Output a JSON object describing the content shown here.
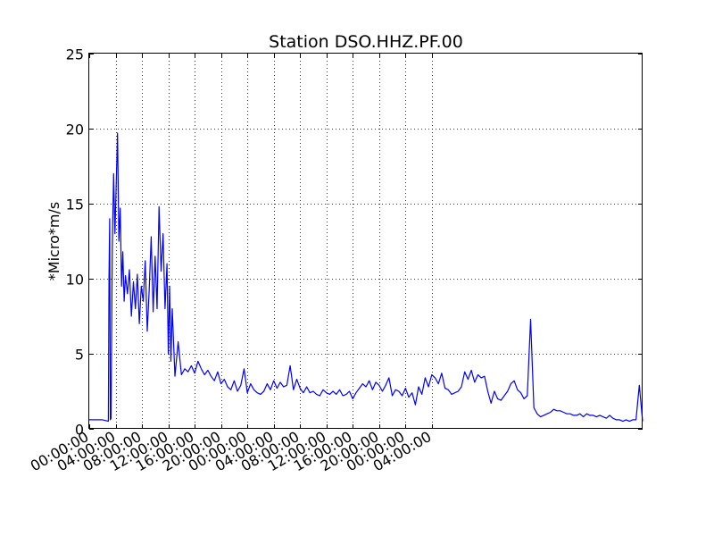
{
  "chart_data": {
    "type": "line",
    "title": "Station DSO.HHZ.PF.00",
    "xlabel": "",
    "ylabel": "*Micro*m/s",
    "ylim": [
      0,
      25
    ],
    "xlim_hours": [
      0,
      84
    ],
    "yticks": [
      "0",
      "5",
      "10",
      "15",
      "20",
      "25"
    ],
    "xticks": [
      "00:00:00",
      "04:00:00",
      "08:00:00",
      "12:00:00",
      "16:00:00",
      "20:00:00",
      "00:00:00",
      "04:00:00",
      "08:00:00",
      "12:00:00",
      "16:00:00",
      "20:00:00",
      "00:00:00",
      "04:00:00"
    ],
    "grid": true,
    "line_color": "#0000ff",
    "series": [
      {
        "x": [
          0,
          1,
          2,
          2.9,
          3.0,
          3.1,
          3.2,
          3.3,
          3.5,
          3.7,
          3.9,
          4.1,
          4.3,
          4.5,
          4.7,
          4.9,
          5.1,
          5.3,
          5.5,
          5.8,
          6.1,
          6.4,
          6.7,
          7.0,
          7.3,
          7.6,
          7.9,
          8.2,
          8.5,
          8.8,
          9.1,
          9.4,
          9.7,
          10.0,
          10.3,
          10.6,
          10.9,
          11.2,
          11.5,
          11.8,
          12.0,
          12.2,
          12.4,
          12.6,
          13,
          13.5,
          14,
          14.5,
          15,
          15.5,
          16,
          16.5,
          17,
          17.5,
          18,
          18.5,
          19,
          19.5,
          20,
          20.5,
          21,
          21.5,
          22,
          22.5,
          23,
          23.5,
          24,
          24.5,
          25,
          25.5,
          26,
          26.5,
          27,
          27.5,
          28,
          28.5,
          29,
          29.5,
          30,
          30.5,
          31,
          31.5,
          32,
          32.5,
          33,
          33.5,
          34,
          34.5,
          35,
          35.5,
          36,
          36.5,
          37,
          37.5,
          38,
          38.5,
          39,
          39.5,
          40,
          40.5,
          41,
          41.5,
          42,
          42.5,
          43,
          43.5,
          44,
          44.5,
          45,
          45.5,
          46,
          46.5,
          47,
          47.5,
          48,
          48.5,
          49,
          49.5,
          50,
          50.5,
          51,
          51.5,
          52,
          52.5,
          53,
          53.5,
          54,
          54.5,
          55,
          55.5,
          56,
          56.5,
          57,
          57.5,
          58,
          58.5,
          59,
          59.5,
          60,
          60.5,
          61,
          61.5,
          62,
          62.5,
          63,
          63.5,
          64,
          64.5,
          65,
          65.5,
          66,
          66.5,
          67,
          67.5,
          68,
          68.5,
          69,
          69.5,
          70,
          70.5,
          71,
          71.5,
          72,
          72.5,
          73,
          73.5,
          74,
          74.5,
          75,
          75.5,
          76,
          76.5,
          77,
          77.5,
          78,
          78.5,
          79,
          79.5,
          80,
          80.5,
          81,
          81.5,
          82,
          82.5,
          83,
          83.5,
          84
        ],
        "values": [
          0.6,
          0.6,
          0.6,
          0.5,
          10.0,
          14.0,
          0.6,
          0.7,
          12.0,
          17.0,
          13.0,
          16.5,
          19.7,
          12.5,
          14.7,
          9.5,
          11.8,
          8.5,
          10.2,
          9.0,
          10.6,
          7.5,
          9.8,
          8.0,
          10.3,
          7.0,
          9.5,
          8.5,
          11.2,
          6.5,
          9.3,
          12.8,
          7.8,
          11.5,
          8.0,
          14.8,
          10.5,
          13.0,
          8.0,
          11.0,
          5.0,
          9.5,
          4.5,
          8.0,
          3.5,
          5.8,
          3.6,
          4.0,
          3.8,
          4.2,
          3.7,
          4.5,
          4.0,
          3.6,
          3.9,
          3.5,
          3.2,
          3.8,
          3.0,
          3.3,
          2.8,
          2.6,
          3.2,
          2.5,
          2.9,
          4.0,
          2.4,
          3.0,
          2.6,
          2.4,
          2.3,
          2.5,
          3.0,
          2.6,
          3.2,
          2.7,
          3.1,
          2.8,
          2.9,
          4.2,
          2.6,
          3.3,
          2.7,
          2.4,
          2.8,
          2.4,
          2.5,
          2.3,
          2.2,
          2.6,
          2.4,
          2.3,
          2.5,
          2.3,
          2.6,
          2.2,
          2.3,
          2.5,
          2.0,
          2.4,
          2.7,
          3.0,
          2.8,
          3.2,
          2.6,
          3.1,
          2.9,
          2.5,
          2.9,
          3.4,
          2.2,
          2.6,
          2.5,
          2.2,
          2.7,
          2.1,
          2.4,
          1.6,
          2.8,
          2.3,
          3.4,
          2.8,
          3.6,
          3.4,
          3.0,
          3.7,
          2.7,
          2.6,
          2.3,
          2.4,
          2.5,
          2.8,
          3.8,
          3.3,
          3.9,
          3.1,
          3.6,
          3.4,
          3.5,
          2.5,
          1.7,
          2.5,
          2.0,
          1.9,
          2.2,
          2.5,
          3.0,
          3.2,
          2.6,
          2.4,
          2.0,
          2.2,
          7.3,
          1.4,
          1.0,
          0.8,
          0.9,
          1.0,
          1.1,
          1.3,
          1.2,
          1.2,
          1.1,
          1.0,
          1.0,
          0.9,
          0.9,
          1.0,
          0.8,
          1.0,
          0.9,
          0.9,
          0.8,
          0.9,
          0.8,
          0.7,
          0.9,
          0.7,
          0.6,
          0.6,
          0.5,
          0.6,
          0.5,
          0.6,
          0.6,
          2.9,
          0.5
        ]
      }
    ]
  }
}
